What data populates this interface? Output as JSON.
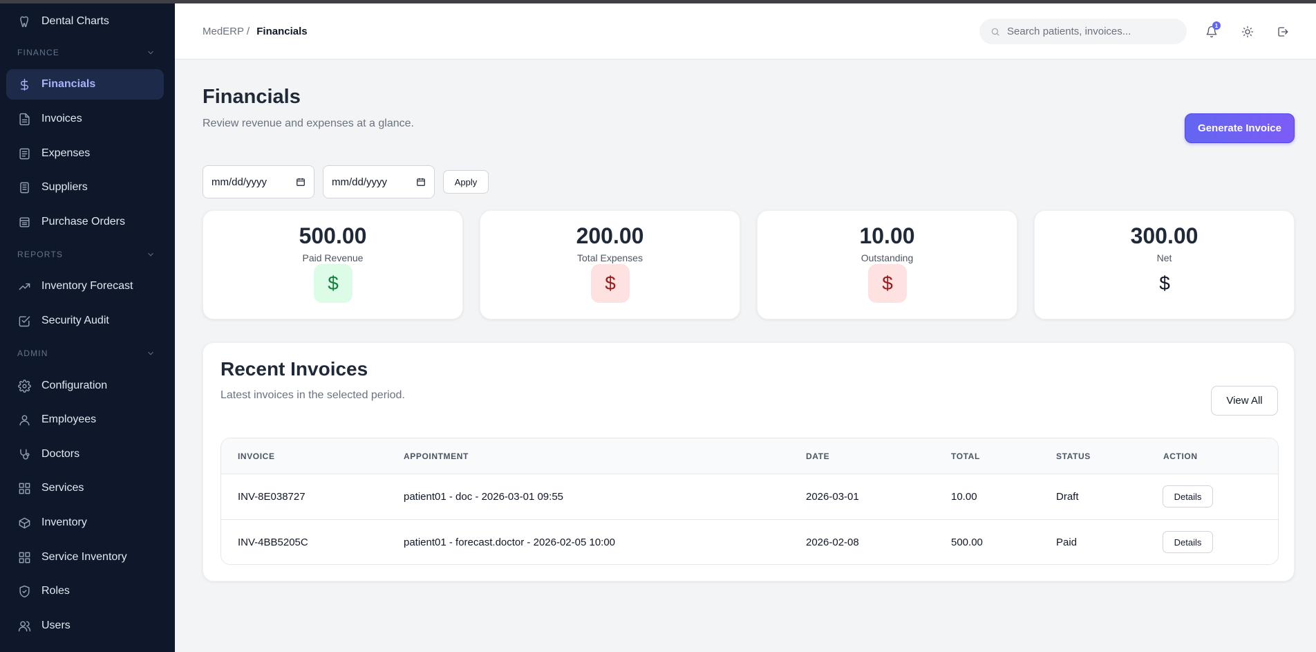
{
  "sidebar": {
    "top_item": "Dental Charts",
    "finance_label": "FINANCE",
    "reports_label": "REPORTS",
    "admin_label": "ADMIN",
    "items": {
      "financials": "Financials",
      "invoices": "Invoices",
      "expenses": "Expenses",
      "suppliers": "Suppliers",
      "purchase_orders": "Purchase Orders",
      "inventory_forecast": "Inventory Forecast",
      "security_audit": "Security Audit",
      "configuration": "Configuration",
      "employees": "Employees",
      "doctors": "Doctors",
      "services": "Services",
      "inventory": "Inventory",
      "service_inventory": "Service Inventory",
      "roles": "Roles",
      "users": "Users"
    }
  },
  "header": {
    "breadcrumb_root": "MedERP /",
    "breadcrumb_current": "Financials",
    "search_placeholder": "Search patients, invoices...",
    "notification_count": "1"
  },
  "main": {
    "title": "Financials",
    "subtitle": "Review revenue and expenses at a glance.",
    "generate_button": "Generate Invoice",
    "date_from_placeholder": "mm/dd/yyyy",
    "date_to_placeholder": "mm/dd/yyyy",
    "apply_button": "Apply"
  },
  "stats": [
    {
      "value": "500.00",
      "label": "Paid Revenue",
      "icon": "dollar-icon",
      "symbol": "$"
    },
    {
      "value": "200.00",
      "label": "Total Expenses",
      "icon": "dollar-icon",
      "symbol": "$"
    },
    {
      "value": "10.00",
      "label": "Outstanding",
      "icon": "dollar-icon",
      "symbol": "$"
    },
    {
      "value": "300.00",
      "label": "Net",
      "icon": "dollar-icon",
      "symbol": "$"
    }
  ],
  "invoices": {
    "title": "Recent Invoices",
    "subtitle": "Latest invoices in the selected period.",
    "view_all": "View All",
    "columns": [
      "INVOICE",
      "APPOINTMENT",
      "DATE",
      "TOTAL",
      "STATUS",
      "ACTION"
    ],
    "rows": [
      {
        "invoice": "INV-8E038727",
        "appointment": "patient01 - doc - 2026-03-01 09:55",
        "date": "2026-03-01",
        "total": "10.00",
        "status": "Draft",
        "action": "Details"
      },
      {
        "invoice": "INV-4BB5205C",
        "appointment": "patient01 - forecast.doctor - 2026-02-05 10:00",
        "date": "2026-02-08",
        "total": "500.00",
        "status": "Paid",
        "action": "Details"
      }
    ]
  },
  "colors": {
    "sidebar_bg": "#0f172a",
    "accent": "#6366f1",
    "positive_bg": "#dcfce7",
    "negative_bg": "#fee2e2"
  }
}
